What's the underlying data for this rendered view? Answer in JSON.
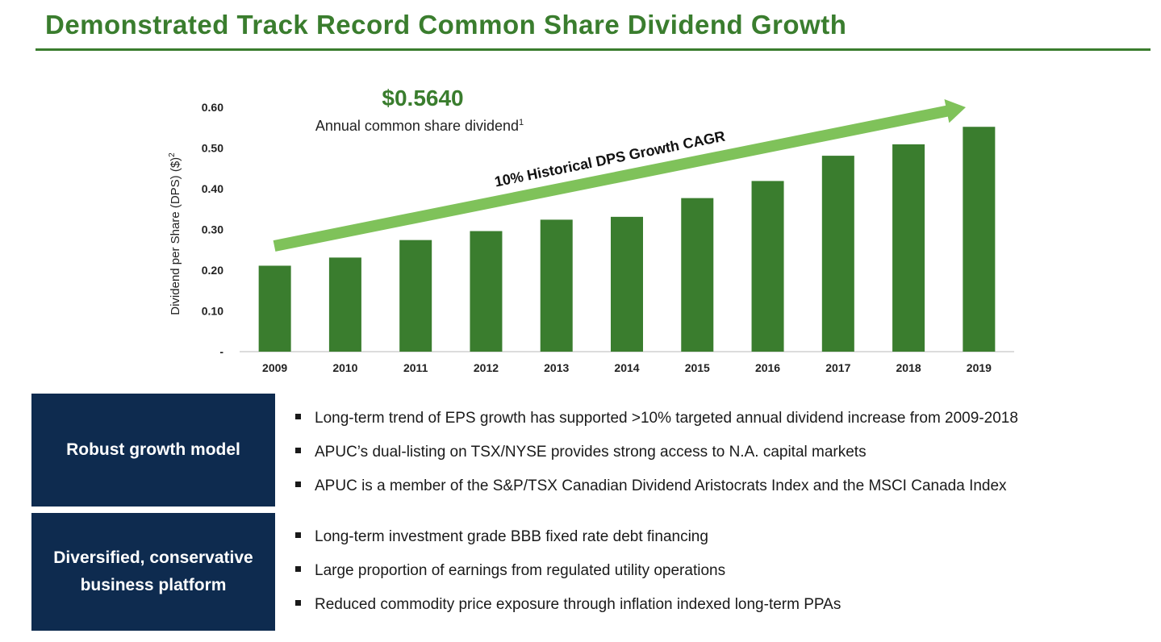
{
  "header": {
    "title": "Demonstrated Track Record Common Share Dividend Growth"
  },
  "headline": {
    "value": "$0.5640",
    "caption": "Annual common share dividend",
    "caption_sup": "1"
  },
  "chart_data": {
    "type": "bar",
    "categories": [
      "2009",
      "2010",
      "2011",
      "2012",
      "2013",
      "2014",
      "2015",
      "2016",
      "2017",
      "2018",
      "2019"
    ],
    "values": [
      0.211,
      0.231,
      0.274,
      0.296,
      0.324,
      0.331,
      0.377,
      0.419,
      0.481,
      0.509,
      0.552
    ],
    "ylabel": "Dividend per Share (DPS) ($)",
    "ylabel_sup": "2",
    "ylim": [
      0,
      0.6
    ],
    "yticks": [
      0,
      0.1,
      0.2,
      0.3,
      0.4,
      0.5,
      0.6
    ],
    "ytick_labels": [
      "-",
      "0.10",
      "0.20",
      "0.30",
      "0.40",
      "0.50",
      "0.60"
    ],
    "annotation": "10% Historical DPS Growth CAGR",
    "bar_color": "#3a7d2e",
    "arrow_color": "#7fc25a"
  },
  "sections": [
    {
      "label": "Robust growth model",
      "bullets": [
        "Long-term trend of EPS growth has supported >10% targeted annual dividend increase from 2009-2018",
        "APUC’s dual-listing on TSX/NYSE provides strong access to N.A. capital markets",
        "APUC is a member of the S&P/TSX Canadian Dividend Aristocrats Index and the MSCI Canada Index"
      ]
    },
    {
      "label": "Diversified, conservative business platform",
      "bullets": [
        "Long-term investment grade BBB fixed rate debt financing",
        "Large proportion of earnings from regulated utility operations",
        "Reduced commodity price exposure through inflation indexed long-term PPAs"
      ]
    }
  ],
  "colors": {
    "brand_green": "#3a7d2e",
    "navy": "#0e2b4f"
  }
}
